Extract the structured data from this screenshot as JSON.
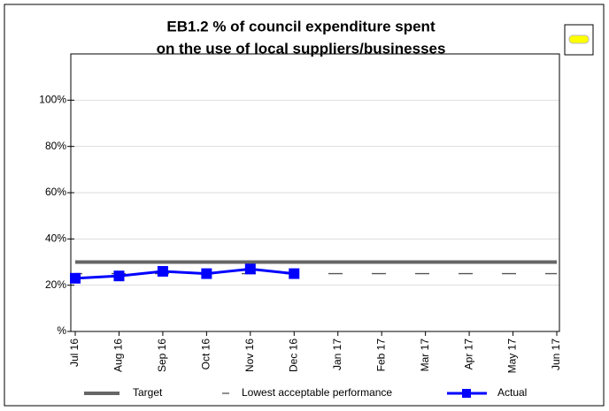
{
  "chart_data": {
    "type": "line",
    "title": [
      "EB1.2 % of council expenditure spent",
      "on the use of local suppliers/businesses"
    ],
    "categories": [
      "Jul 16",
      "Aug 16",
      "Sep 16",
      "Oct 16",
      "Nov 16",
      "Dec 16",
      "Jan 17",
      "Feb 17",
      "Mar 17",
      "Apr 17",
      "May 17",
      "Jun 17"
    ],
    "series": [
      {
        "name": "Target",
        "color": "#666666",
        "style": "solid",
        "values": [
          30,
          30,
          30,
          30,
          30,
          30,
          30,
          30,
          30,
          30,
          30,
          30
        ]
      },
      {
        "name": "Lowest acceptable performance",
        "color": "#555555",
        "style": "dashed",
        "values": [
          25,
          25,
          25,
          25,
          25,
          25,
          25,
          25,
          25,
          25,
          25,
          25
        ]
      },
      {
        "name": "Actual",
        "color": "#0000ff",
        "style": "marker",
        "values": [
          23,
          24,
          26,
          25,
          27,
          25,
          null,
          null,
          null,
          null,
          null,
          null
        ]
      }
    ],
    "ylim": [
      0,
      120
    ],
    "yticks": [
      {
        "value": 0,
        "label": "%"
      },
      {
        "value": 20,
        "label": "20%"
      },
      {
        "value": 40,
        "label": "40%"
      },
      {
        "value": 60,
        "label": "60%"
      },
      {
        "value": 80,
        "label": "80%"
      },
      {
        "value": 100,
        "label": "100%"
      }
    ],
    "grid": true
  }
}
